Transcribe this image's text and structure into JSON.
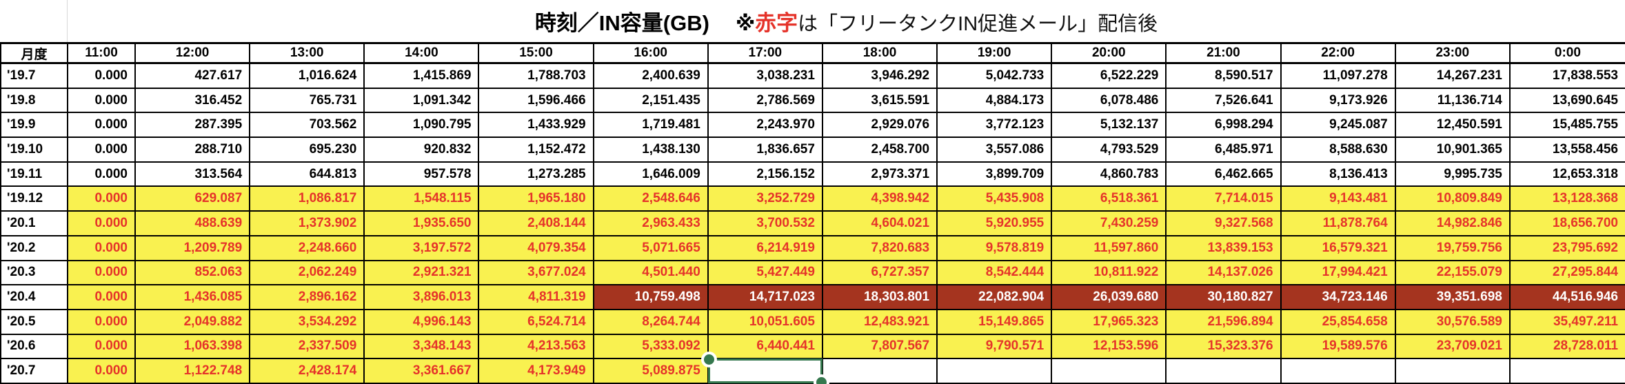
{
  "title": {
    "main": "時刻／IN容量(GB)",
    "note_mark": "※",
    "note_red": "赤字",
    "note_rest": "は「フリータンクIN促進メール」配信後"
  },
  "colors": {
    "highlight_bg": "#f9f150",
    "highlight_text": "#e5332a",
    "emphasis_bg": "#a5341f",
    "emphasis_text": "#ffffff",
    "selection_green": "#35784e",
    "grid_line": "#000000"
  },
  "table": {
    "corner_header": "月度",
    "columns": [
      "11:00",
      "12:00",
      "13:00",
      "14:00",
      "15:00",
      "16:00",
      "17:00",
      "18:00",
      "19:00",
      "20:00",
      "21:00",
      "22:00",
      "23:00",
      "0:00"
    ],
    "rows": [
      {
        "label": "'19.7",
        "style": "normal",
        "values": [
          "0.000",
          "427.617",
          "1,016.624",
          "1,415.869",
          "1,788.703",
          "2,400.639",
          "3,038.231",
          "3,946.292",
          "5,042.733",
          "6,522.229",
          "8,590.517",
          "11,097.278",
          "14,267.231",
          "17,838.553"
        ]
      },
      {
        "label": "'19.8",
        "style": "normal",
        "values": [
          "0.000",
          "316.452",
          "765.731",
          "1,091.342",
          "1,596.466",
          "2,151.435",
          "2,786.569",
          "3,615.591",
          "4,884.173",
          "6,078.486",
          "7,526.641",
          "9,173.926",
          "11,136.714",
          "13,690.645"
        ]
      },
      {
        "label": "'19.9",
        "style": "normal",
        "values": [
          "0.000",
          "287.395",
          "703.562",
          "1,090.795",
          "1,433.929",
          "1,719.481",
          "2,243.970",
          "2,929.076",
          "3,772.123",
          "5,132.137",
          "6,998.294",
          "9,245.087",
          "12,450.591",
          "15,485.755"
        ]
      },
      {
        "label": "'19.10",
        "style": "normal",
        "values": [
          "0.000",
          "288.710",
          "695.230",
          "920.832",
          "1,152.472",
          "1,438.130",
          "1,836.657",
          "2,458.700",
          "3,557.086",
          "4,793.529",
          "6,485.971",
          "8,588.630",
          "10,901.365",
          "13,558.456"
        ]
      },
      {
        "label": "'19.11",
        "style": "normal",
        "values": [
          "0.000",
          "313.564",
          "644.813",
          "957.578",
          "1,273.285",
          "1,646.009",
          "2,156.152",
          "2,973.371",
          "3,899.709",
          "4,860.783",
          "6,462.665",
          "8,136.413",
          "9,995.735",
          "12,653.318"
        ]
      },
      {
        "label": "'19.12",
        "style": "highlight",
        "values": [
          "0.000",
          "629.087",
          "1,086.817",
          "1,548.115",
          "1,965.180",
          "2,548.646",
          "3,252.729",
          "4,398.942",
          "5,435.908",
          "6,518.361",
          "7,714.015",
          "9,143.481",
          "10,809.849",
          "13,128.368"
        ]
      },
      {
        "label": "'20.1",
        "style": "highlight",
        "values": [
          "0.000",
          "488.639",
          "1,373.902",
          "1,935.650",
          "2,408.144",
          "2,963.433",
          "3,700.532",
          "4,604.021",
          "5,920.955",
          "7,430.259",
          "9,327.568",
          "11,878.764",
          "14,982.846",
          "18,656.700"
        ]
      },
      {
        "label": "'20.2",
        "style": "highlight",
        "values": [
          "0.000",
          "1,209.789",
          "2,248.660",
          "3,197.572",
          "4,079.354",
          "5,071.665",
          "6,214.919",
          "7,820.683",
          "9,578.819",
          "11,597.860",
          "13,839.153",
          "16,579.321",
          "19,759.756",
          "23,795.692"
        ]
      },
      {
        "label": "'20.3",
        "style": "highlight",
        "values": [
          "0.000",
          "852.063",
          "2,062.249",
          "2,921.321",
          "3,677.024",
          "4,501.440",
          "5,427.449",
          "6,727.357",
          "8,542.444",
          "10,811.922",
          "14,137.026",
          "17,994.421",
          "22,155.079",
          "27,295.844"
        ]
      },
      {
        "label": "'20.4",
        "style": "highlight",
        "emphasis_from": "16:00",
        "values": [
          "0.000",
          "1,436.085",
          "2,896.162",
          "3,896.013",
          "4,811.319",
          "10,759.498",
          "14,717.023",
          "18,303.801",
          "22,082.904",
          "26,039.680",
          "30,180.827",
          "34,723.146",
          "39,351.698",
          "44,516.946"
        ]
      },
      {
        "label": "'20.5",
        "style": "highlight",
        "values": [
          "0.000",
          "2,049.882",
          "3,534.292",
          "4,996.143",
          "6,524.714",
          "8,264.744",
          "10,051.605",
          "12,483.921",
          "15,149.865",
          "17,965.323",
          "21,596.894",
          "25,854.658",
          "30,576.589",
          "35,497.211"
        ]
      },
      {
        "label": "'20.6",
        "style": "highlight",
        "values": [
          "0.000",
          "1,063.398",
          "2,337.509",
          "3,348.143",
          "4,213.563",
          "5,333.092",
          "6,440.441",
          "7,807.567",
          "9,790.571",
          "12,153.596",
          "15,323.376",
          "19,589.576",
          "23,709.021",
          "28,728.011"
        ]
      },
      {
        "label": "'20.7",
        "style": "highlight",
        "values": [
          "0.000",
          "1,122.748",
          "2,428.174",
          "3,361.667",
          "4,173.949",
          "5,089.875",
          "",
          "",
          "",
          "",
          "",
          "",
          "",
          ""
        ]
      }
    ]
  },
  "selection": {
    "row": "'20.7",
    "column": "17:00"
  }
}
